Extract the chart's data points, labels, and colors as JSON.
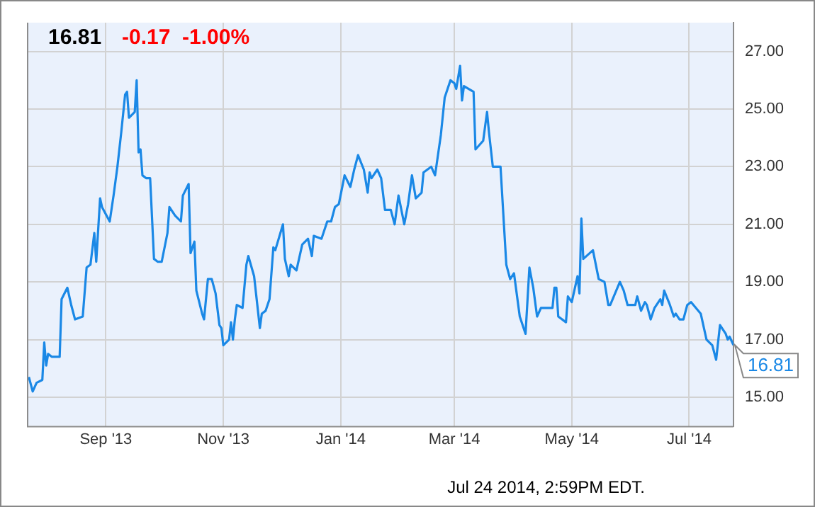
{
  "chart_data": {
    "type": "line",
    "title": "16.81",
    "subtitle": "-0.17  -1.00%",
    "x": [
      "2013-07-23",
      "2013-07-25",
      "2013-07-27",
      "2013-07-30",
      "2013-07-31",
      "2013-08-01",
      "2013-08-02",
      "2013-08-04",
      "2013-08-06",
      "2013-08-08",
      "2013-08-09",
      "2013-08-12",
      "2013-08-14",
      "2013-08-16",
      "2013-08-20",
      "2013-08-22",
      "2013-08-24",
      "2013-08-26",
      "2013-08-27",
      "2013-08-29",
      "2013-08-30",
      "2013-09-03",
      "2013-09-05",
      "2013-09-07",
      "2013-09-09",
      "2013-09-11",
      "2013-09-12",
      "2013-09-13",
      "2013-09-16",
      "2013-09-17",
      "2013-09-18",
      "2013-09-19",
      "2013-09-20",
      "2013-09-22",
      "2013-09-24",
      "2013-09-26",
      "2013-09-28",
      "2013-09-30",
      "2013-10-03",
      "2013-10-04",
      "2013-10-07",
      "2013-10-10",
      "2013-10-11",
      "2013-10-14",
      "2013-10-15",
      "2013-10-17",
      "2013-10-18",
      "2013-10-21",
      "2013-10-22",
      "2013-10-24",
      "2013-10-26",
      "2013-10-28",
      "2013-10-30",
      "2013-10-31",
      "2013-11-01",
      "2013-11-04",
      "2013-11-05",
      "2013-11-06",
      "2013-11-07",
      "2013-11-08",
      "2013-11-11",
      "2013-11-13",
      "2013-11-14",
      "2013-11-17",
      "2013-11-20",
      "2013-11-21",
      "2013-11-23",
      "2013-11-25",
      "2013-11-27",
      "2013-11-28",
      "2013-12-02",
      "2013-12-03",
      "2013-12-05",
      "2013-12-06",
      "2013-12-09",
      "2013-12-12",
      "2013-12-15",
      "2013-12-17",
      "2013-12-18",
      "2013-12-22",
      "2013-12-25",
      "2013-12-27",
      "2013-12-29",
      "2013-12-31",
      "2014-01-03",
      "2014-01-06",
      "2014-01-08",
      "2014-01-10",
      "2014-01-13",
      "2014-01-15",
      "2014-01-16",
      "2014-01-17",
      "2014-01-20",
      "2014-01-22",
      "2014-01-24",
      "2014-01-27",
      "2014-01-29",
      "2014-01-31",
      "2014-02-03",
      "2014-02-05",
      "2014-02-07",
      "2014-02-09",
      "2014-02-12",
      "2014-02-13",
      "2014-02-17",
      "2014-02-19",
      "2014-02-22",
      "2014-02-24",
      "2014-02-27",
      "2014-03-01",
      "2014-03-02",
      "2014-03-04",
      "2014-03-05",
      "2014-03-06",
      "2014-03-11",
      "2014-03-12",
      "2014-03-16",
      "2014-03-18",
      "2014-03-19",
      "2014-03-21",
      "2014-03-25",
      "2014-03-28",
      "2014-03-30",
      "2014-04-01",
      "2014-04-04",
      "2014-04-07",
      "2014-04-09",
      "2014-04-11",
      "2014-04-13",
      "2014-04-15",
      "2014-04-17",
      "2014-04-21",
      "2014-04-22",
      "2014-04-23",
      "2014-04-24",
      "2014-04-28",
      "2014-04-29",
      "2014-05-01",
      "2014-05-04",
      "2014-05-05",
      "2014-05-06",
      "2014-05-07",
      "2014-05-12",
      "2014-05-15",
      "2014-05-18",
      "2014-05-20",
      "2014-05-21",
      "2014-05-26",
      "2014-05-28",
      "2014-05-30",
      "2014-06-03",
      "2014-06-04",
      "2014-06-06",
      "2014-06-08",
      "2014-06-09",
      "2014-06-11",
      "2014-06-13",
      "2014-06-16",
      "2014-06-17",
      "2014-06-18",
      "2014-06-21",
      "2014-06-23",
      "2014-06-24",
      "2014-06-26",
      "2014-06-28",
      "2014-06-30",
      "2014-07-02",
      "2014-07-07",
      "2014-07-10",
      "2014-07-13",
      "2014-07-15",
      "2014-07-17",
      "2014-07-20",
      "2014-07-21",
      "2014-07-22",
      "2014-07-24"
    ],
    "series": [
      {
        "color": "#1a88e6",
        "values": [
          15.7,
          15.2,
          15.5,
          15.6,
          16.9,
          16.1,
          16.5,
          16.4,
          16.4,
          16.4,
          18.4,
          18.8,
          18.2,
          17.7,
          17.8,
          19.5,
          19.6,
          20.7,
          19.7,
          21.9,
          21.6,
          21.1,
          22.0,
          23.0,
          24.2,
          25.5,
          25.6,
          24.7,
          24.9,
          26.0,
          23.5,
          23.6,
          22.7,
          22.6,
          22.6,
          19.8,
          19.7,
          19.7,
          20.7,
          21.6,
          21.3,
          21.1,
          22.0,
          22.4,
          20.0,
          20.4,
          18.7,
          17.9,
          17.7,
          19.1,
          19.1,
          18.6,
          17.5,
          17.4,
          16.8,
          17.0,
          17.6,
          17.0,
          17.7,
          18.2,
          18.1,
          19.6,
          19.9,
          19.2,
          17.4,
          17.9,
          18.0,
          18.4,
          20.2,
          20.1,
          21.0,
          19.8,
          19.2,
          19.6,
          19.4,
          20.3,
          20.5,
          19.9,
          20.6,
          20.5,
          21.1,
          21.1,
          21.6,
          21.7,
          22.7,
          22.3,
          22.9,
          23.4,
          22.9,
          22.1,
          22.8,
          22.6,
          22.9,
          22.6,
          21.5,
          21.5,
          21.0,
          22.0,
          21.0,
          21.7,
          22.7,
          21.9,
          22.1,
          22.8,
          23.0,
          22.7,
          24.1,
          25.4,
          26.0,
          25.9,
          25.7,
          26.5,
          25.3,
          25.8,
          25.6,
          23.6,
          23.9,
          24.9,
          24.2,
          23.0,
          23.0,
          19.6,
          19.1,
          19.3,
          17.8,
          17.2,
          19.5,
          18.8,
          17.8,
          18.1,
          18.1,
          18.1,
          18.8,
          18.8,
          17.8,
          17.6,
          18.5,
          18.3,
          19.2,
          18.6,
          21.2,
          19.8,
          20.1,
          19.1,
          19.0,
          18.2,
          18.2,
          19.0,
          18.7,
          18.2,
          18.2,
          18.5,
          18.0,
          18.3,
          18.2,
          17.7,
          18.1,
          18.4,
          18.2,
          18.7,
          18.2,
          17.8,
          17.9,
          17.7,
          17.7,
          18.2,
          18.3,
          17.9,
          17.0,
          16.8,
          16.3,
          17.5,
          17.2,
          17.0,
          17.1,
          16.81
        ]
      }
    ],
    "xlim": [
      "2013-07-22",
      "2014-07-24"
    ],
    "xticks": [
      {
        "value": "2013-09-01",
        "label": "Sep '13"
      },
      {
        "value": "2013-11-01",
        "label": "Nov '13"
      },
      {
        "value": "2014-01-01",
        "label": "Jan '14"
      },
      {
        "value": "2014-03-01",
        "label": "Mar '14"
      },
      {
        "value": "2014-05-01",
        "label": "May '14"
      },
      {
        "value": "2014-07-01",
        "label": "Jul '14"
      }
    ],
    "ylim": [
      14,
      28
    ],
    "yticks": [
      {
        "value": 15,
        "label": "15.00"
      },
      {
        "value": 17,
        "label": "17.00"
      },
      {
        "value": 19,
        "label": "19.00"
      },
      {
        "value": 21,
        "label": "21.00"
      },
      {
        "value": 23,
        "label": "23.00"
      },
      {
        "value": 25,
        "label": "25.00"
      },
      {
        "value": 27,
        "label": "27.00"
      }
    ],
    "grid": true,
    "marker": "none",
    "line_style": "solid",
    "legend": false,
    "annotations": [
      {
        "text": "16.81",
        "x": "2014-07-24",
        "y": 16.81
      },
      "Jul 24 2014, 2:59PM EDT."
    ]
  }
}
